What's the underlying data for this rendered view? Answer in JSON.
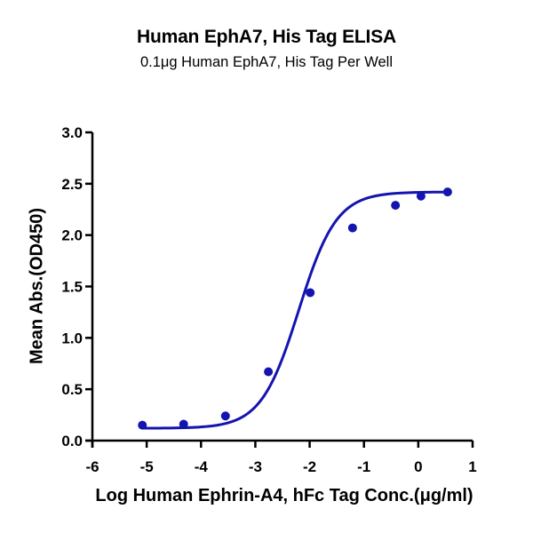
{
  "chart": {
    "title": "Human EphA7, His Tag ELISA",
    "subtitle": "0.1μg Human EphA7, His Tag Per Well",
    "xlabel": "Log Human Ephrin-A4, hFc Tag Conc.(μg/ml)",
    "ylabel": "Mean Abs.(OD450)",
    "series_color": "#1414b0"
  },
  "chart_data": {
    "type": "scatter",
    "title": "Human EphA7, His Tag ELISA",
    "subtitle": "0.1μg Human EphA7, His Tag Per Well",
    "xlabel": "Log Human Ephrin-A4, hFc Tag Conc.(μg/ml)",
    "ylabel": "Mean Abs.(OD450)",
    "xlim": [
      -6,
      1
    ],
    "ylim": [
      0,
      3.0
    ],
    "xticks": [
      -6,
      -5,
      -4,
      -3,
      -2,
      -1,
      0,
      1
    ],
    "yticks": [
      "0.0",
      "0.5",
      "1.0",
      "1.5",
      "2.0",
      "2.5",
      "3.0"
    ],
    "grid": false,
    "legend": null,
    "series": [
      {
        "name": "Human Ephrin-A4, hFc Tag",
        "x": [
          -5.08,
          -4.32,
          -3.55,
          -2.76,
          -1.99,
          -1.21,
          -0.42,
          0.05,
          0.54
        ],
        "y": [
          0.15,
          0.16,
          0.24,
          0.67,
          1.44,
          2.07,
          2.29,
          2.38,
          2.42
        ],
        "fit": {
          "model": "4PL",
          "bottom": 0.12,
          "top": 2.42,
          "log_ec50": -2.2,
          "hill": 1.25
        }
      }
    ]
  }
}
